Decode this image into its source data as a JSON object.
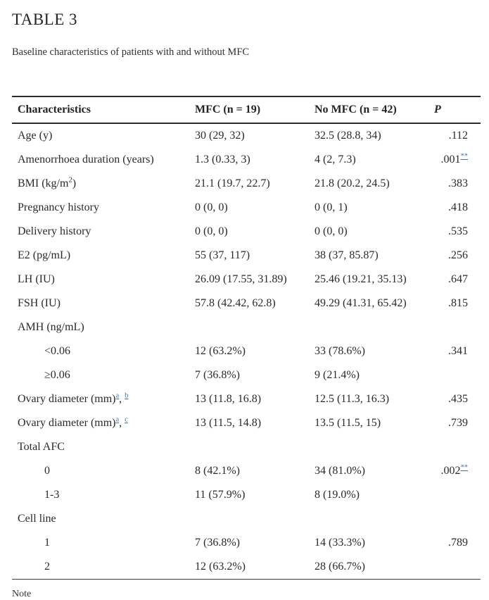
{
  "page": {
    "title": "TABLE 3",
    "subtitle": "Baseline characteristics of patients with and without MFC",
    "note_label": "Note"
  },
  "table": {
    "footnote_link_color": "#3d6fa3",
    "rule_color": "#2b2b2b",
    "columns": [
      "Characteristics",
      "MFC (n = 19)",
      "No MFC (n = 42)",
      "P"
    ],
    "rows": [
      {
        "indent": false,
        "cells": [
          [
            {
              "t": "Age (y)"
            }
          ],
          [
            {
              "t": "30 (29, 32)"
            }
          ],
          [
            {
              "t": "32.5 (28.8, 34)"
            }
          ],
          [
            {
              "t": ".112"
            }
          ]
        ]
      },
      {
        "indent": false,
        "cells": [
          [
            {
              "t": "Amenorrhoea duration (years)"
            }
          ],
          [
            {
              "t": "1.3 (0.33, 3)"
            }
          ],
          [
            {
              "t": "4 (2, 7.3)"
            }
          ],
          [
            {
              "t": ".001"
            },
            {
              "sup": "**",
              "link": true
            }
          ]
        ]
      },
      {
        "indent": false,
        "cells": [
          [
            {
              "t": "BMI (kg/m"
            },
            {
              "sup": "2",
              "link": false
            },
            {
              "t": ")"
            }
          ],
          [
            {
              "t": "21.1 (19.7, 22.7)"
            }
          ],
          [
            {
              "t": "21.8 (20.2, 24.5)"
            }
          ],
          [
            {
              "t": ".383"
            }
          ]
        ]
      },
      {
        "indent": false,
        "cells": [
          [
            {
              "t": "Pregnancy history"
            }
          ],
          [
            {
              "t": "0 (0, 0)"
            }
          ],
          [
            {
              "t": "0 (0, 1)"
            }
          ],
          [
            {
              "t": ".418"
            }
          ]
        ]
      },
      {
        "indent": false,
        "cells": [
          [
            {
              "t": "Delivery history"
            }
          ],
          [
            {
              "t": "0 (0, 0)"
            }
          ],
          [
            {
              "t": "0 (0, 0)"
            }
          ],
          [
            {
              "t": ".535"
            }
          ]
        ]
      },
      {
        "indent": false,
        "cells": [
          [
            {
              "t": "E2 (pg/mL)"
            }
          ],
          [
            {
              "t": "55 (37, 117)"
            }
          ],
          [
            {
              "t": "38 (37, 85.87)"
            }
          ],
          [
            {
              "t": ".256"
            }
          ]
        ]
      },
      {
        "indent": false,
        "cells": [
          [
            {
              "t": "LH (IU)"
            }
          ],
          [
            {
              "t": "26.09 (17.55, 31.89)"
            }
          ],
          [
            {
              "t": "25.46 (19.21, 35.13)"
            }
          ],
          [
            {
              "t": ".647"
            }
          ]
        ]
      },
      {
        "indent": false,
        "cells": [
          [
            {
              "t": "FSH (IU)"
            }
          ],
          [
            {
              "t": "57.8 (42.42, 62.8)"
            }
          ],
          [
            {
              "t": "49.29 (41.31, 65.42)"
            }
          ],
          [
            {
              "t": ".815"
            }
          ]
        ]
      },
      {
        "indent": false,
        "cells": [
          [
            {
              "t": "AMH (ng/mL)"
            }
          ],
          [],
          [],
          []
        ]
      },
      {
        "indent": true,
        "cells": [
          [
            {
              "t": "<0.06"
            }
          ],
          [
            {
              "t": "12 (63.2%)"
            }
          ],
          [
            {
              "t": "33 (78.6%)"
            }
          ],
          [
            {
              "t": ".341"
            }
          ]
        ]
      },
      {
        "indent": true,
        "cells": [
          [
            {
              "t": "≥0.06"
            }
          ],
          [
            {
              "t": "7 (36.8%)"
            }
          ],
          [
            {
              "t": "9 (21.4%)"
            }
          ],
          []
        ]
      },
      {
        "indent": false,
        "cells": [
          [
            {
              "t": "Ovary diameter (mm)"
            },
            {
              "sup": "a",
              "link": true
            },
            {
              "t": ", "
            },
            {
              "sup": "b",
              "link": true
            }
          ],
          [
            {
              "t": "13 (11.8, 16.8)"
            }
          ],
          [
            {
              "t": "12.5 (11.3, 16.3)"
            }
          ],
          [
            {
              "t": ".435"
            }
          ]
        ]
      },
      {
        "indent": false,
        "cells": [
          [
            {
              "t": "Ovary diameter (mm)"
            },
            {
              "sup": "a",
              "link": true
            },
            {
              "t": ", "
            },
            {
              "sup": "c",
              "link": true
            }
          ],
          [
            {
              "t": "13 (11.5, 14.8)"
            }
          ],
          [
            {
              "t": "13.5 (11.5, 15)"
            }
          ],
          [
            {
              "t": ".739"
            }
          ]
        ]
      },
      {
        "indent": false,
        "cells": [
          [
            {
              "t": "Total AFC"
            }
          ],
          [],
          [],
          []
        ]
      },
      {
        "indent": true,
        "cells": [
          [
            {
              "t": "0"
            }
          ],
          [
            {
              "t": "8 (42.1%)"
            }
          ],
          [
            {
              "t": "34 (81.0%)"
            }
          ],
          [
            {
              "t": ".002"
            },
            {
              "sup": "**",
              "link": true
            }
          ]
        ]
      },
      {
        "indent": true,
        "cells": [
          [
            {
              "t": "1-3"
            }
          ],
          [
            {
              "t": "11 (57.9%)"
            }
          ],
          [
            {
              "t": "8 (19.0%)"
            }
          ],
          []
        ]
      },
      {
        "indent": false,
        "cells": [
          [
            {
              "t": "Cell line"
            }
          ],
          [],
          [],
          []
        ]
      },
      {
        "indent": true,
        "cells": [
          [
            {
              "t": "1"
            }
          ],
          [
            {
              "t": "7 (36.8%)"
            }
          ],
          [
            {
              "t": "14 (33.3%)"
            }
          ],
          [
            {
              "t": ".789"
            }
          ]
        ]
      },
      {
        "indent": true,
        "cells": [
          [
            {
              "t": "2"
            }
          ],
          [
            {
              "t": "12 (63.2%)"
            }
          ],
          [
            {
              "t": "28 (66.7%)"
            }
          ],
          []
        ]
      }
    ]
  }
}
